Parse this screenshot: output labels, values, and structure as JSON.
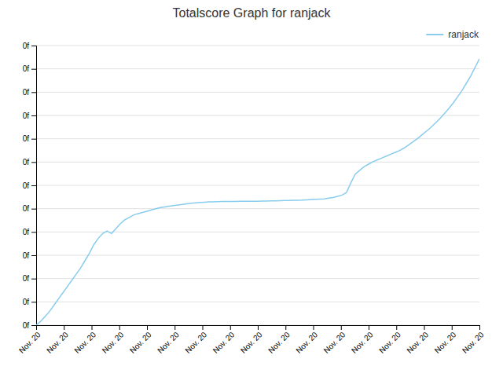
{
  "chart_data": {
    "type": "line",
    "title": "Totalscore Graph for ranjack",
    "x": [
      0,
      1,
      2,
      3,
      4,
      5,
      6,
      7,
      8,
      9,
      10,
      11,
      12,
      13,
      14,
      15,
      16,
      17,
      18,
      19,
      20,
      21,
      22,
      23,
      24,
      25,
      26,
      27,
      28,
      29,
      30,
      31,
      32,
      33,
      34,
      35,
      36,
      37,
      38,
      39,
      40,
      41,
      42,
      43,
      44,
      45,
      46,
      47,
      48,
      49,
      50,
      51,
      52,
      53,
      54,
      55,
      56,
      57,
      58,
      59,
      60,
      61,
      62,
      63,
      64,
      65,
      66,
      67,
      68,
      69,
      70,
      71,
      72,
      73,
      74,
      75,
      76,
      77,
      78,
      79,
      80,
      81,
      82,
      83,
      84,
      85,
      86,
      87,
      88,
      89,
      90,
      91,
      92,
      93,
      94,
      95,
      96,
      97,
      98,
      99,
      100
    ],
    "series": [
      {
        "name": "ranjack",
        "color": "#88ccee",
        "values": [
          0,
          0.3,
          0.7,
          1.1,
          1.6,
          2.1,
          2.6,
          3.1,
          3.6,
          4.1,
          4.6,
          5.2,
          5.8,
          6.5,
          7.0,
          7.4,
          7.6,
          7.4,
          7.8,
          8.2,
          8.5,
          8.7,
          8.9,
          9.0,
          9.1,
          9.2,
          9.3,
          9.4,
          9.5,
          9.55,
          9.6,
          9.65,
          9.7,
          9.75,
          9.8,
          9.85,
          9.88,
          9.91,
          9.93,
          9.95,
          9.96,
          9.97,
          9.98,
          9.98,
          9.99,
          9.99,
          10.0,
          10.0,
          10.0,
          10.01,
          10.01,
          10.02,
          10.02,
          10.03,
          10.04,
          10.05,
          10.06,
          10.07,
          10.08,
          10.09,
          10.1,
          10.12,
          10.14,
          10.16,
          10.18,
          10.2,
          10.25,
          10.3,
          10.4,
          10.5,
          10.7,
          11.5,
          12.2,
          12.5,
          12.8,
          13.0,
          13.2,
          13.35,
          13.5,
          13.65,
          13.8,
          13.95,
          14.1,
          14.3,
          14.55,
          14.8,
          15.05,
          15.35,
          15.65,
          15.95,
          16.3,
          16.65,
          17.05,
          17.45,
          17.9,
          18.4,
          18.9,
          19.5,
          20.1,
          20.8,
          21.5
        ]
      }
    ],
    "xlim": [
      0,
      100
    ],
    "xticks": [
      {
        "value": 0,
        "label": "Nov. 20"
      },
      {
        "value": 6.25,
        "label": "Nov. 20"
      },
      {
        "value": 12.5,
        "label": "Nov. 20"
      },
      {
        "value": 18.75,
        "label": "Nov. 20"
      },
      {
        "value": 25,
        "label": "Nov. 20"
      },
      {
        "value": 31.25,
        "label": "Nov. 20"
      },
      {
        "value": 37.5,
        "label": "Nov. 20"
      },
      {
        "value": 43.75,
        "label": "Nov. 20"
      },
      {
        "value": 50,
        "label": "Nov. 20"
      },
      {
        "value": 56.25,
        "label": "Nov. 20"
      },
      {
        "value": 62.5,
        "label": "Nov. 20"
      },
      {
        "value": 68.75,
        "label": "Nov. 20"
      },
      {
        "value": 75,
        "label": "Nov. 20"
      },
      {
        "value": 81.25,
        "label": "Nov. 20"
      },
      {
        "value": 87.5,
        "label": "Nov. 20"
      },
      {
        "value": 93.75,
        "label": "Nov. 20"
      },
      {
        "value": 100,
        "label": "Nov. 20"
      }
    ],
    "ylim": [
      0,
      22.575
    ],
    "yticks": [
      {
        "value": 0,
        "label": "0f"
      },
      {
        "value": 1.88125,
        "label": "0f"
      },
      {
        "value": 3.7625,
        "label": "0f"
      },
      {
        "value": 5.64375,
        "label": "0f"
      },
      {
        "value": 7.525,
        "label": "0f"
      },
      {
        "value": 9.40625,
        "label": "0f"
      },
      {
        "value": 11.2875,
        "label": "0f"
      },
      {
        "value": 13.16875,
        "label": "0f"
      },
      {
        "value": 15.05,
        "label": "0f"
      },
      {
        "value": 16.93125,
        "label": "0f"
      },
      {
        "value": 18.8125,
        "label": "0f"
      },
      {
        "value": 20.69375,
        "label": "0f"
      },
      {
        "value": 22.575,
        "label": "0f"
      }
    ],
    "grid": true,
    "legend": "upper right"
  }
}
